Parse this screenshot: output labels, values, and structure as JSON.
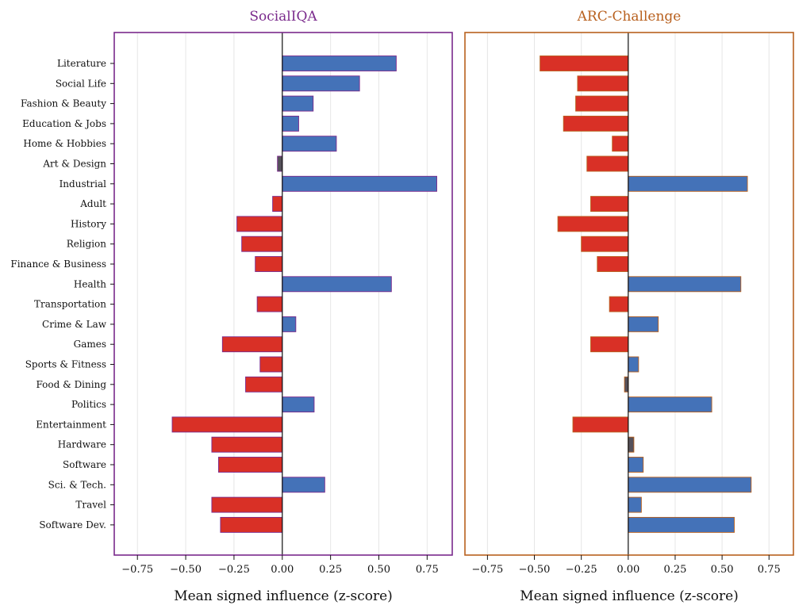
{
  "chart_data": {
    "type": "bar",
    "orientation": "horizontal",
    "categories": [
      "Literature",
      "Social Life",
      "Fashion & Beauty",
      "Education & Jobs",
      "Home & Hobbies",
      "Art & Design",
      "Industrial",
      "Adult",
      "History",
      "Religion",
      "Finance & Business",
      "Health",
      "Transportation",
      "Crime & Law",
      "Games",
      "Sports & Fitness",
      "Food & Dining",
      "Politics",
      "Entertainment",
      "Hardware",
      "Software",
      "Sci. & Tech.",
      "Travel",
      "Software Dev."
    ],
    "xlim": [
      -0.87,
      0.88
    ],
    "xticks": [
      "−0.75",
      "−0.50",
      "−0.25",
      "0.00",
      "0.25",
      "0.50",
      "0.75"
    ],
    "xtick_values": [
      -0.75,
      -0.5,
      -0.25,
      0,
      0.25,
      0.5,
      0.75
    ],
    "xlabel": "Mean signed influence (z-score)",
    "grid": "vertical",
    "colors": {
      "positive": "#4472b8",
      "negative": "#d93026",
      "near_zero": "#55515a"
    },
    "panels": [
      {
        "title": "SocialIQA",
        "accent": "#7a2a8c",
        "values": [
          0.59,
          0.4,
          0.16,
          0.085,
          0.28,
          -0.025,
          0.8,
          -0.05,
          -0.235,
          -0.21,
          -0.14,
          0.565,
          -0.13,
          0.07,
          -0.31,
          -0.115,
          -0.19,
          0.165,
          -0.57,
          -0.365,
          -0.33,
          0.22,
          -0.365,
          -0.32
        ]
      },
      {
        "title": "ARC-Challenge",
        "accent": "#b8601e",
        "values": [
          -0.47,
          -0.27,
          -0.28,
          -0.345,
          -0.085,
          -0.22,
          0.635,
          -0.2,
          -0.375,
          -0.25,
          -0.165,
          0.6,
          -0.1,
          0.16,
          -0.2,
          0.055,
          -0.02,
          0.445,
          -0.295,
          0.03,
          0.08,
          0.655,
          0.07,
          0.565
        ]
      }
    ]
  }
}
